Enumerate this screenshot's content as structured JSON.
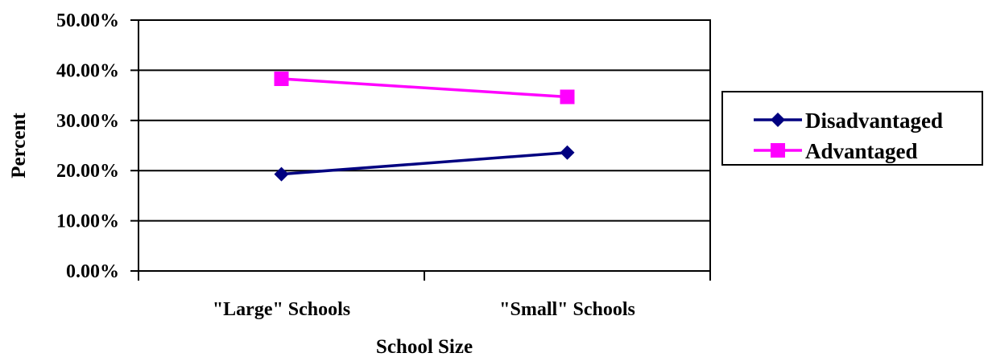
{
  "chart_data": {
    "type": "line",
    "categories": [
      "\"Large\" Schools",
      "\"Small\" Schools"
    ],
    "series": [
      {
        "name": "Disadvantaged",
        "values": [
          0.193,
          0.236
        ],
        "color": "#000080",
        "marker": "diamond"
      },
      {
        "name": "Advantaged",
        "values": [
          0.383,
          0.347
        ],
        "color": "#FF00FF",
        "marker": "square"
      }
    ],
    "xlabel": "School Size",
    "ylabel": "Percent",
    "ylim": [
      0,
      0.5
    ],
    "yticks": [
      0,
      0.1,
      0.2,
      0.3,
      0.4,
      0.5
    ],
    "ytick_labels": [
      "0.00%",
      "10.00%",
      "20.00%",
      "30.00%",
      "40.00%",
      "50.00%"
    ],
    "grid": true,
    "legend_position": "right"
  }
}
